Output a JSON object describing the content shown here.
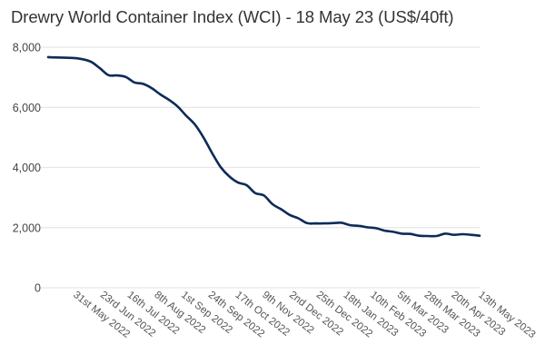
{
  "chart_data": {
    "type": "line",
    "title": "Drewry World Container Index (WCI) - 18 May 23 (US$/40ft)",
    "xlabel": "",
    "ylabel": "",
    "ylim": [
      0,
      8000
    ],
    "yticks": [
      0,
      2000,
      4000,
      6000,
      8000
    ],
    "ytick_labels": [
      "0",
      "2,000",
      "4,000",
      "6,000",
      "8,000"
    ],
    "grid": true,
    "legend": "none",
    "xtick_labels": [
      "31st May 2022",
      "23rd Jun 2022",
      "16th Jul 2022",
      "8th Aug 2022",
      "1st Sep 2022",
      "24th Sep 2022",
      "17th Oct 2022",
      "9th Nov 2022",
      "2nd Dec 2022",
      "25th Dec 2022",
      "18th Jan 2023",
      "10th Feb 2023",
      "5th Mar 2023",
      "28th Mar 2023",
      "20th Apr 2023",
      "13th May 2023"
    ],
    "series": [
      {
        "name": "WCI (US$/40ft)",
        "color": "#0d2b57",
        "x_start": "19 May 2022",
        "x_end": "18 May 2023",
        "x_step": "weekly",
        "values": [
          7670,
          7660,
          7650,
          7640,
          7600,
          7510,
          7300,
          7070,
          7060,
          7010,
          6830,
          6780,
          6640,
          6430,
          6250,
          6030,
          5720,
          5430,
          5000,
          4480,
          4010,
          3700,
          3500,
          3410,
          3150,
          3070,
          2780,
          2610,
          2420,
          2310,
          2150,
          2140,
          2140,
          2150,
          2160,
          2080,
          2060,
          2010,
          1980,
          1900,
          1860,
          1800,
          1790,
          1730,
          1720,
          1720,
          1800,
          1760,
          1780,
          1760,
          1730
        ]
      }
    ]
  }
}
